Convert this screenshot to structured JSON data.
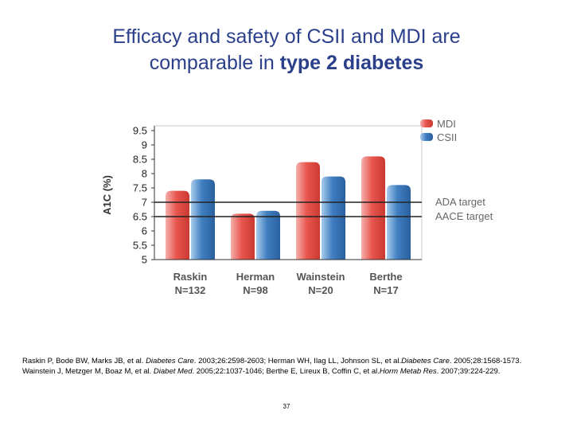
{
  "slide": {
    "title_line1": "Efficacy and safety of CSII and MDI are",
    "title_line2_prefix": "comparable in ",
    "title_line2_bold": "type 2 diabetes",
    "page_number": "37"
  },
  "references": {
    "line1": [
      {
        "t": "Raskin P, Bode BW, Marks JB, et al. ",
        "i": false
      },
      {
        "t": "Diabetes Care",
        "i": true
      },
      {
        "t": ". 2003;26:2598-2603; Herman WH, Ilag LL, Johnson SL, et al.",
        "i": false
      },
      {
        "t": "Diabetes Care",
        "i": true
      },
      {
        "t": ". 2005;28:1568-1573.",
        "i": false
      }
    ],
    "line2": [
      {
        "t": "Wainstein J, Metzger M, Boaz M, et al. ",
        "i": false
      },
      {
        "t": "Diabet Med",
        "i": true
      },
      {
        "t": ". 2005;22:1037-1046; Berthe E, Lireux B, Coffin C, et al.",
        "i": false
      },
      {
        "t": "Horm Metab Res",
        "i": true
      },
      {
        "t": ". 2007;39:224-229.",
        "i": false
      }
    ]
  },
  "chart_data": {
    "type": "bar",
    "ylabel": "A1C (%)",
    "ylim": [
      5,
      9.5
    ],
    "yticks": [
      "5",
      "5.5",
      "6",
      "6.5",
      "7",
      "7.5",
      "8",
      "8.5",
      "9",
      "9.5"
    ],
    "categories": [
      {
        "name": "Raskin",
        "n": "N=132"
      },
      {
        "name": "Herman",
        "n": "N=98"
      },
      {
        "name": "Wainstein",
        "n": "N=20"
      },
      {
        "name": "Berthe",
        "n": "N=17"
      }
    ],
    "series": [
      {
        "name": "MDI",
        "values": [
          7.4,
          6.6,
          8.4,
          8.6
        ],
        "color": "#e8554e"
      },
      {
        "name": "CSII",
        "values": [
          7.8,
          6.7,
          7.9,
          7.6
        ],
        "color": "#3f7fc1"
      }
    ],
    "reference_lines": [
      {
        "name": "ADA target",
        "value": 7.0
      },
      {
        "name": "AACE target",
        "value": 6.5
      }
    ],
    "legend_position": "top-right",
    "grid": false
  }
}
